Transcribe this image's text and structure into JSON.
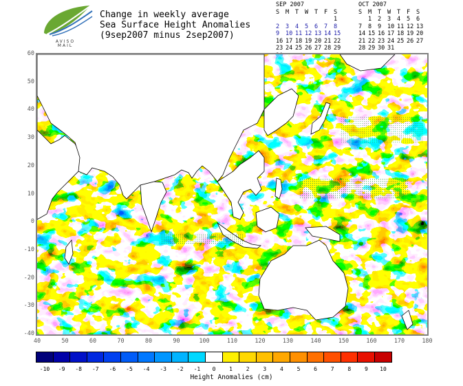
{
  "title": {
    "line1": "Change in weekly average",
    "line2": "Sea Surface Height Anomalies",
    "line3": "(9sep2007 minus 2sep2007)"
  },
  "logo": {
    "icon": "leaf-logo-icon",
    "text": "AVISO MAIL"
  },
  "calendars": [
    {
      "month": "SEP 2007",
      "days_header": [
        "S",
        "M",
        "T",
        "W",
        "T",
        "F",
        "S"
      ],
      "weeks": [
        [
          "",
          "",
          "",
          "",
          "",
          "",
          "1"
        ],
        [
          "2",
          "3",
          "4",
          "5",
          "6",
          "7",
          "8"
        ],
        [
          "9",
          "10",
          "11",
          "12",
          "13",
          "14",
          "15"
        ],
        [
          "16",
          "17",
          "18",
          "19",
          "20",
          "21",
          "22"
        ],
        [
          "23",
          "24",
          "25",
          "26",
          "27",
          "28",
          "29"
        ],
        [
          "30",
          "",
          "",
          "",
          "",
          "",
          ""
        ]
      ]
    },
    {
      "month": "OCT 2007",
      "days_header": [
        "S",
        "M",
        "T",
        "W",
        "T",
        "F",
        "S"
      ],
      "weeks": [
        [
          "",
          "1",
          "2",
          "3",
          "4",
          "5",
          "6"
        ],
        [
          "7",
          "8",
          "9",
          "10",
          "11",
          "12",
          "13"
        ],
        [
          "14",
          "15",
          "16",
          "17",
          "18",
          "19",
          "20"
        ],
        [
          "21",
          "22",
          "23",
          "24",
          "25",
          "26",
          "27"
        ],
        [
          "28",
          "29",
          "30",
          "31",
          "",
          "",
          ""
        ]
      ]
    }
  ],
  "map": {
    "lon_range": [
      40,
      180
    ],
    "lat_range": [
      -40,
      60
    ],
    "x_ticks": [
      "40",
      "50",
      "60",
      "70",
      "80",
      "90",
      "100",
      "110",
      "120",
      "130",
      "140",
      "150",
      "160",
      "170",
      "180"
    ],
    "y_ticks": [
      "60",
      "50",
      "40",
      "30",
      "20",
      "10",
      "0",
      "-10",
      "-20",
      "-30",
      "-40"
    ]
  },
  "colorbar": {
    "labels": [
      "-10",
      "-9",
      "-8",
      "-7",
      "-6",
      "-5",
      "-4",
      "-3",
      "-2",
      "-1",
      "0",
      "1",
      "2",
      "3",
      "4",
      "5",
      "6",
      "7",
      "8",
      "9",
      "10"
    ],
    "colors": [
      "#00007a",
      "#0000a8",
      "#0010c8",
      "#0028e0",
      "#0040f0",
      "#005cf8",
      "#0078ff",
      "#0096ff",
      "#00b4ff",
      "#00d8ff",
      "#ffffff",
      "#fff000",
      "#ffd800",
      "#ffc000",
      "#ffa800",
      "#ff9000",
      "#ff7000",
      "#ff5000",
      "#ff3000",
      "#e81000",
      "#c80000"
    ],
    "unit_label": "Height Anomalies (cm)"
  }
}
